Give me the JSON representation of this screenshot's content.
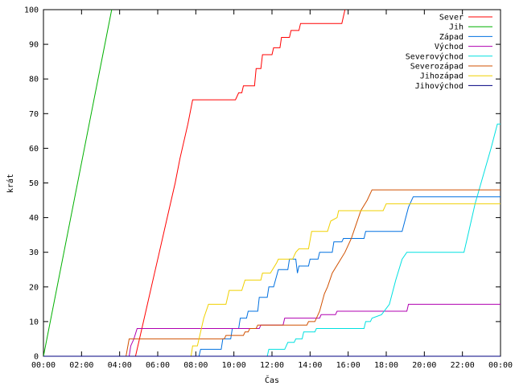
{
  "chart_data": {
    "type": "line",
    "title": "",
    "xlabel": "Čas",
    "ylabel": "krát",
    "x_ticks": [
      "00:00",
      "02:00",
      "04:00",
      "06:00",
      "08:00",
      "10:00",
      "12:00",
      "14:00",
      "16:00",
      "18:00",
      "20:00",
      "22:00",
      "00:00"
    ],
    "xlim": [
      "00:00",
      "24:00"
    ],
    "y_ticks": [
      0,
      10,
      20,
      30,
      40,
      50,
      60,
      70,
      80,
      90,
      100
    ],
    "ylim": [
      0,
      100
    ],
    "grid": false,
    "legend_position": "top-right",
    "series": [
      {
        "name": "Sever",
        "color": "#ff0000",
        "points": [
          [
            "04:50",
            0
          ],
          [
            "05:15",
            10
          ],
          [
            "05:40",
            20
          ],
          [
            "06:05",
            30
          ],
          [
            "06:30",
            40
          ],
          [
            "06:55",
            50
          ],
          [
            "07:10",
            57
          ],
          [
            "07:35",
            67
          ],
          [
            "07:50",
            74
          ],
          [
            "10:05",
            74
          ],
          [
            "10:15",
            76
          ],
          [
            "10:25",
            76
          ],
          [
            "10:30",
            78
          ],
          [
            "11:05",
            78
          ],
          [
            "11:10",
            83
          ],
          [
            "11:25",
            83
          ],
          [
            "11:30",
            87
          ],
          [
            "12:00",
            87
          ],
          [
            "12:05",
            89
          ],
          [
            "12:25",
            89
          ],
          [
            "12:30",
            92
          ],
          [
            "12:55",
            92
          ],
          [
            "13:00",
            94
          ],
          [
            "13:25",
            94
          ],
          [
            "13:30",
            96
          ],
          [
            "15:40",
            96
          ],
          [
            "15:50",
            100
          ]
        ]
      },
      {
        "name": "Jih",
        "color": "#00b000",
        "points": [
          [
            "00:00",
            0
          ],
          [
            "03:35",
            100
          ]
        ]
      },
      {
        "name": "Západ",
        "color": "#0070e0",
        "points": [
          [
            "08:10",
            0
          ],
          [
            "08:15",
            2
          ],
          [
            "09:20",
            2
          ],
          [
            "09:25",
            5
          ],
          [
            "09:50",
            5
          ],
          [
            "09:55",
            8
          ],
          [
            "10:15",
            8
          ],
          [
            "10:20",
            11
          ],
          [
            "10:40",
            11
          ],
          [
            "10:45",
            13
          ],
          [
            "11:15",
            13
          ],
          [
            "11:20",
            17
          ],
          [
            "11:45",
            17
          ],
          [
            "11:50",
            20
          ],
          [
            "12:05",
            20
          ],
          [
            "12:20",
            25
          ],
          [
            "12:50",
            25
          ],
          [
            "12:55",
            28
          ],
          [
            "13:15",
            28
          ],
          [
            "13:20",
            24
          ],
          [
            "13:25",
            26
          ],
          [
            "13:55",
            26
          ],
          [
            "14:00",
            28
          ],
          [
            "14:25",
            28
          ],
          [
            "14:30",
            30
          ],
          [
            "15:10",
            30
          ],
          [
            "15:15",
            33
          ],
          [
            "15:40",
            33
          ],
          [
            "15:45",
            34
          ],
          [
            "16:50",
            34
          ],
          [
            "16:55",
            36
          ],
          [
            "18:50",
            36
          ],
          [
            "19:10",
            43
          ],
          [
            "19:25",
            46
          ],
          [
            "24:00",
            46
          ]
        ]
      },
      {
        "name": "Východ",
        "color": "#b000b0",
        "points": [
          [
            "04:30",
            0
          ],
          [
            "04:35",
            3
          ],
          [
            "04:45",
            5
          ],
          [
            "04:55",
            8
          ],
          [
            "11:20",
            8
          ],
          [
            "11:25",
            9
          ],
          [
            "12:35",
            9
          ],
          [
            "12:40",
            11
          ],
          [
            "14:30",
            11
          ],
          [
            "14:35",
            12
          ],
          [
            "15:20",
            12
          ],
          [
            "15:25",
            13
          ],
          [
            "19:05",
            13
          ],
          [
            "19:10",
            15
          ],
          [
            "24:00",
            15
          ]
        ]
      },
      {
        "name": "Severovýchod",
        "color": "#00e0e0",
        "points": [
          [
            "11:45",
            0
          ],
          [
            "11:50",
            2
          ],
          [
            "12:40",
            2
          ],
          [
            "12:50",
            4
          ],
          [
            "13:10",
            4
          ],
          [
            "13:15",
            5
          ],
          [
            "13:35",
            5
          ],
          [
            "13:40",
            7
          ],
          [
            "14:15",
            7
          ],
          [
            "14:20",
            8
          ],
          [
            "16:50",
            8
          ],
          [
            "16:55",
            10
          ],
          [
            "17:10",
            10
          ],
          [
            "17:15",
            11
          ],
          [
            "17:45",
            12
          ],
          [
            "18:10",
            15
          ],
          [
            "18:30",
            22
          ],
          [
            "18:50",
            28
          ],
          [
            "19:05",
            30
          ],
          [
            "22:05",
            30
          ],
          [
            "22:20",
            36
          ],
          [
            "22:40",
            44
          ],
          [
            "23:05",
            52
          ],
          [
            "23:30",
            60
          ],
          [
            "23:50",
            67
          ],
          [
            "24:00",
            67
          ]
        ]
      },
      {
        "name": "Severozápad",
        "color": "#d05000",
        "points": [
          [
            "04:20",
            0
          ],
          [
            "04:30",
            5
          ],
          [
            "09:30",
            5
          ],
          [
            "09:35",
            6
          ],
          [
            "10:30",
            6
          ],
          [
            "10:35",
            7
          ],
          [
            "10:45",
            7
          ],
          [
            "10:50",
            8
          ],
          [
            "11:10",
            8
          ],
          [
            "11:15",
            9
          ],
          [
            "13:50",
            9
          ],
          [
            "13:55",
            10
          ],
          [
            "14:15",
            10
          ],
          [
            "14:30",
            13
          ],
          [
            "14:45",
            18
          ],
          [
            "14:55",
            20
          ],
          [
            "15:10",
            24
          ],
          [
            "15:30",
            27
          ],
          [
            "15:50",
            30
          ],
          [
            "16:10",
            34
          ],
          [
            "16:25",
            38
          ],
          [
            "16:40",
            42
          ],
          [
            "17:00",
            45
          ],
          [
            "17:15",
            48
          ],
          [
            "24:00",
            48
          ]
        ]
      },
      {
        "name": "Jihozápad",
        "color": "#f0d000",
        "points": [
          [
            "07:45",
            0
          ],
          [
            "07:50",
            3
          ],
          [
            "08:05",
            3
          ],
          [
            "08:15",
            7
          ],
          [
            "08:25",
            11
          ],
          [
            "08:40",
            15
          ],
          [
            "09:35",
            15
          ],
          [
            "09:45",
            19
          ],
          [
            "10:25",
            19
          ],
          [
            "10:35",
            22
          ],
          [
            "11:25",
            22
          ],
          [
            "11:30",
            24
          ],
          [
            "11:55",
            24
          ],
          [
            "12:15",
            27
          ],
          [
            "12:20",
            28
          ],
          [
            "13:05",
            28
          ],
          [
            "13:15",
            30
          ],
          [
            "13:25",
            31
          ],
          [
            "13:55",
            31
          ],
          [
            "14:05",
            36
          ],
          [
            "14:55",
            36
          ],
          [
            "15:05",
            39
          ],
          [
            "15:25",
            40
          ],
          [
            "15:30",
            42
          ],
          [
            "17:50",
            42
          ],
          [
            "18:00",
            44
          ],
          [
            "24:00",
            44
          ]
        ]
      },
      {
        "name": "Jihovýchod",
        "color": "#000080",
        "points": [
          [
            "00:00",
            0
          ],
          [
            "24:00",
            0
          ]
        ]
      }
    ]
  }
}
